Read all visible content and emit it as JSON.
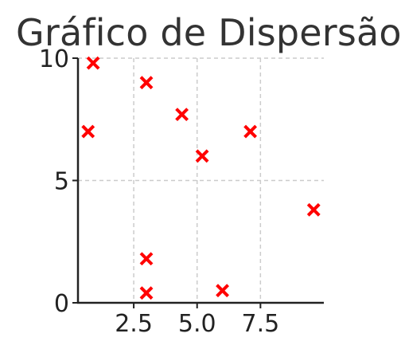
{
  "chart_data": {
    "type": "scatter",
    "title": "Gráfico de Dispersão",
    "xlabel": "",
    "ylabel": "",
    "xlim": [
      0.3,
      10.0
    ],
    "ylim": [
      0,
      10.0
    ],
    "grid": true,
    "x_ticks": [
      2.5,
      5.0,
      7.5
    ],
    "x_tick_labels": [
      "2.5",
      "5.0",
      "7.5"
    ],
    "y_ticks": [
      0,
      5,
      10
    ],
    "y_tick_labels": [
      "0",
      "5",
      "10"
    ],
    "marker": "x",
    "marker_color": "#ff0000",
    "points": [
      {
        "x": 0.9,
        "y": 9.8
      },
      {
        "x": 0.7,
        "y": 7.0
      },
      {
        "x": 3.0,
        "y": 9.0
      },
      {
        "x": 4.4,
        "y": 7.7
      },
      {
        "x": 5.2,
        "y": 6.0
      },
      {
        "x": 7.1,
        "y": 7.0
      },
      {
        "x": 9.6,
        "y": 3.8
      },
      {
        "x": 3.0,
        "y": 1.8
      },
      {
        "x": 3.0,
        "y": 0.4
      },
      {
        "x": 6.0,
        "y": 0.5
      }
    ]
  }
}
